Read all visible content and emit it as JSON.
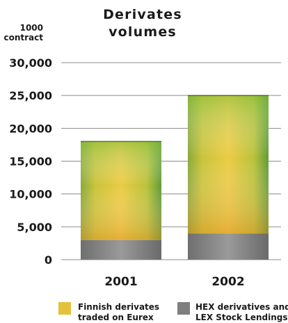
{
  "chart_data": {
    "type": "bar",
    "stacked": true,
    "title": [
      "Derivates",
      "volumes"
    ],
    "ylabel": [
      "1000",
      "contract"
    ],
    "xlabel": "",
    "categories": [
      "2001",
      "2002"
    ],
    "ylim": [
      0,
      30000
    ],
    "yticks": [
      0,
      5000,
      10000,
      15000,
      20000,
      25000,
      30000
    ],
    "ytick_labels": [
      "0",
      "5,000",
      "10,000",
      "15,000",
      "20,000",
      "25,000",
      "30,000"
    ],
    "grid": true,
    "series": [
      {
        "name": "HEX derivatives and LEX Stock Lendings",
        "values": [
          3000,
          4000
        ],
        "color": "#7f7f7f"
      },
      {
        "name": "Finnish derivates traded on Eurex",
        "values": [
          15000,
          21000
        ],
        "color": "#e3c23a"
      }
    ],
    "legend": {
      "position": "bottom",
      "items": [
        {
          "label": [
            "Finnish derivates",
            "traded on Eurex"
          ],
          "color": "#e3c23a"
        },
        {
          "label": [
            "HEX derivatives and",
            "LEX Stock Lendings"
          ],
          "color": "#7f7f7f"
        }
      ]
    }
  }
}
